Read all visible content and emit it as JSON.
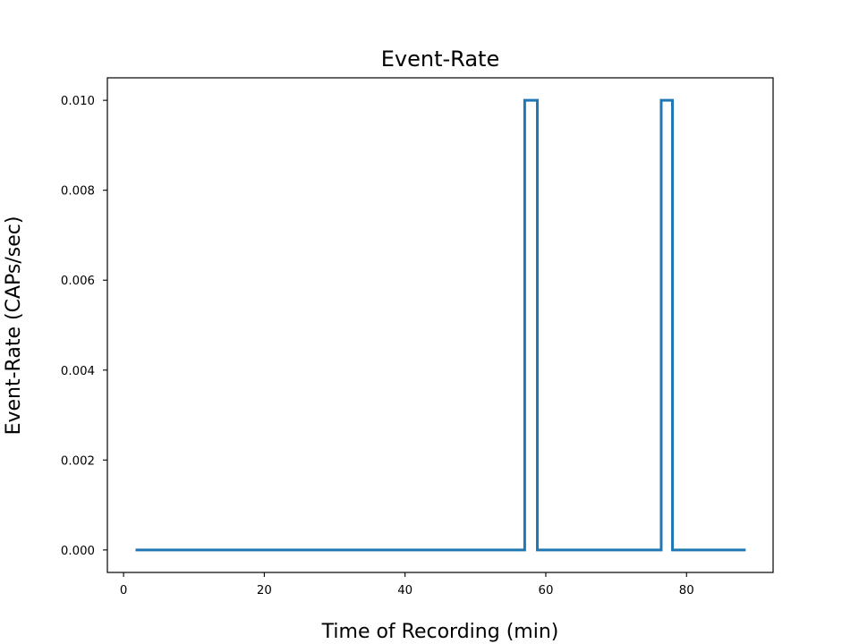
{
  "chart_data": {
    "type": "line",
    "title": "Event-Rate",
    "xlabel": "Time of Recording (min)",
    "ylabel": "Event-Rate (CAPs/sec)",
    "xlim": [
      -2.3,
      92.3
    ],
    "ylim": [
      -0.0005,
      0.0105
    ],
    "xticks": [
      0,
      20,
      40,
      60,
      80
    ],
    "xtick_labels": [
      "0",
      "20",
      "40",
      "60",
      "80"
    ],
    "yticks": [
      0,
      0.002,
      0.004,
      0.006,
      0.008,
      0.01
    ],
    "ytick_labels": [
      "0.000",
      "0.002",
      "0.004",
      "0.006",
      "0.008",
      "0.010"
    ],
    "grid": false,
    "line_color": "#1f77b4",
    "series": [
      {
        "x": [
          1.7,
          57.0,
          57.0,
          58.8,
          58.8,
          76.4,
          76.4,
          78.0,
          78.0,
          88.4
        ],
        "y": [
          0,
          0,
          0.01,
          0.01,
          0,
          0,
          0.01,
          0.01,
          0,
          0
        ]
      }
    ]
  }
}
